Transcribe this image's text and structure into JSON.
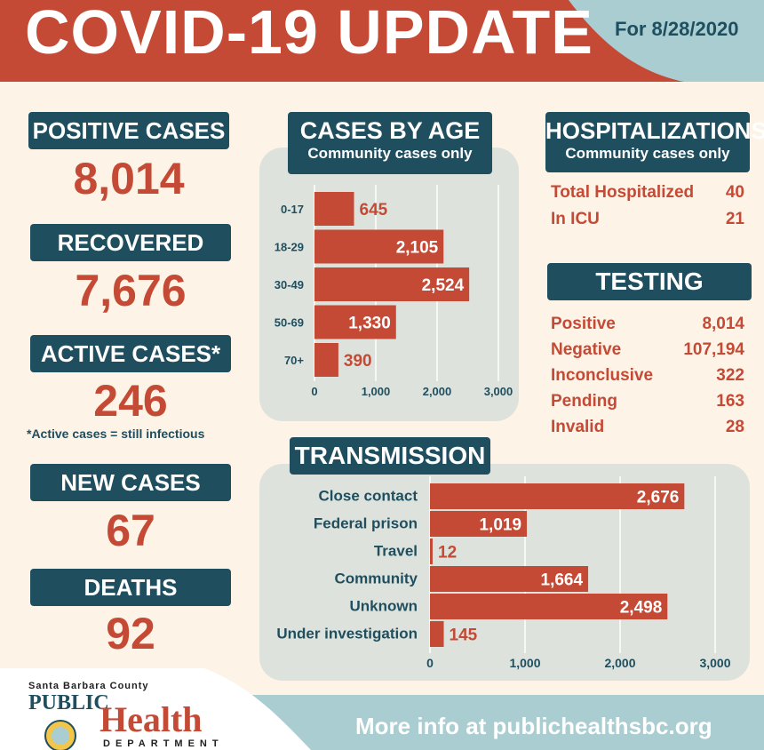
{
  "header": {
    "title": "COVID-19 UPDATE",
    "date": "For 8/28/2020"
  },
  "stats": {
    "positive_label": "POSITIVE CASES",
    "positive_value": "8,014",
    "recovered_label": "RECOVERED",
    "recovered_value": "7,676",
    "active_label": "ACTIVE CASES*",
    "active_value": "246",
    "active_note": "*Active cases =  still infectious",
    "new_label": "NEW CASES",
    "new_value": "67",
    "deaths_label": "DEATHS",
    "deaths_value": "92"
  },
  "age_chart": {
    "title": "CASES BY AGE",
    "subtitle": "Community cases only"
  },
  "transmission_chart": {
    "title": "TRANSMISSION"
  },
  "hospitalizations": {
    "title": "HOSPITALIZATIONS",
    "subtitle": "Community cases only",
    "rows": [
      {
        "label": "Total Hospitalized",
        "value": "40"
      },
      {
        "label": "In ICU",
        "value": "21"
      }
    ]
  },
  "testing": {
    "title": "TESTING",
    "rows": [
      {
        "label": "Positive",
        "value": "8,014"
      },
      {
        "label": "Negative",
        "value": "107,194"
      },
      {
        "label": "Inconclusive",
        "value": "322"
      },
      {
        "label": "Pending",
        "value": "163"
      },
      {
        "label": "Invalid",
        "value": "28"
      }
    ]
  },
  "footer": {
    "org_line1": "Santa Barbara County",
    "org_public": "PUBLIC",
    "org_health": "Health",
    "org_department": "DEPARTMENT",
    "more_info": "More info at publichealthsbc.org"
  },
  "colors": {
    "brand_red": "#c44a35",
    "navy": "#1f4e5f",
    "teal": "#a9cdd1",
    "panel": "#dde3dc"
  },
  "chart_data": [
    {
      "type": "bar",
      "orientation": "horizontal",
      "title": "CASES BY AGE",
      "subtitle": "Community cases only",
      "categories": [
        "0-17",
        "18-29",
        "30-49",
        "50-69",
        "70+"
      ],
      "values": [
        645,
        2105,
        2524,
        1330,
        390
      ],
      "value_labels": [
        "645",
        "2,105",
        "2,524",
        "1,330",
        "390"
      ],
      "xlim": [
        0,
        3000
      ],
      "ticks": [
        "0",
        "1,000",
        "2,000",
        "3,000"
      ],
      "grid": true
    },
    {
      "type": "bar",
      "orientation": "horizontal",
      "title": "TRANSMISSION",
      "categories": [
        "Close contact",
        "Federal prison",
        "Travel",
        "Community",
        "Unknown",
        "Under investigation"
      ],
      "values": [
        2676,
        1019,
        12,
        1664,
        2498,
        145
      ],
      "value_labels": [
        "2,676",
        "1,019",
        "12",
        "1,664",
        "2,498",
        "145"
      ],
      "xlim": [
        0,
        3000
      ],
      "ticks": [
        "0",
        "1,000",
        "2,000",
        "3,000"
      ],
      "grid": true
    }
  ]
}
